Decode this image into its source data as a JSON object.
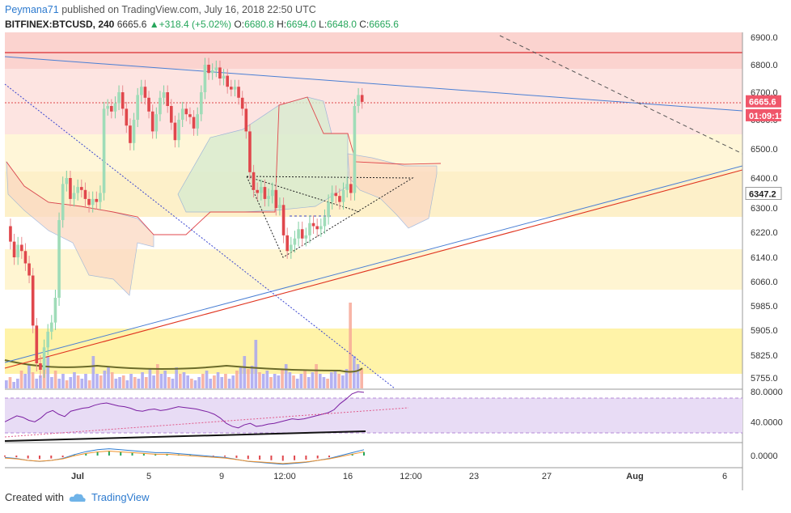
{
  "header": {
    "author": "Peymana71",
    "published": "published on TradingView.com, July 16, 2018 22:50 UTC"
  },
  "ohlc": {
    "symbol": "BITFINEX:BTCUSD, 240",
    "last": "6665.6",
    "change": "+318.4 (+5.02%)",
    "o_label": "O:",
    "o": "6680.8",
    "h_label": "H:",
    "h": "6694.0",
    "l_label": "L:",
    "l": "6648.0",
    "c_label": "C:",
    "c": "6665.6"
  },
  "footer": {
    "created": "Created with",
    "brand": "TradingView"
  },
  "colors": {
    "up": "#26a65b",
    "down": "#e0474c",
    "trend_blue": "#4a7fd4",
    "trend_red": "#e0341f",
    "price_label_bg": "#f0566a",
    "rsi_line": "#7b1fa2",
    "rsi_band": "#e8dcf5"
  },
  "chart_data": [
    {
      "type": "line",
      "title": "BITFINEX:BTCUSD, 240",
      "y_axis_labels": [
        "6900.0",
        "6800.0",
        "6700.0",
        "6600.0",
        "6500.0",
        "6400.0",
        "6300.0",
        "6220.0",
        "6140.0",
        "6060.0",
        "5985.0",
        "5905.0",
        "5825.0",
        "5755.0"
      ],
      "ylim": [
        5730,
        6930
      ],
      "x_axis_labels": [
        "Jul",
        "5",
        "9",
        "12:00",
        "16",
        "12:00",
        "23",
        "27",
        "Aug",
        "6"
      ],
      "price_tags": [
        {
          "label": "6665.6",
          "value": 6665.6,
          "kind": "last"
        },
        {
          "label": "01:09:11",
          "value": 6615,
          "kind": "countdown"
        },
        {
          "label": "6347.2",
          "value": 6347.2,
          "kind": "level"
        }
      ],
      "series": [
        {
          "values": [
            6240,
            6190,
            6140,
            6180,
            6160,
            6120,
            6080,
            5920,
            5800,
            5780,
            5850,
            5900,
            5930,
            6010,
            6260,
            6380,
            6400,
            6330,
            6350,
            6370,
            6360,
            6330,
            6310,
            6330,
            6320,
            6350,
            6640,
            6650,
            6630,
            6660,
            6700,
            6640,
            6580,
            6520,
            6600,
            6690,
            6720,
            6680,
            6630,
            6560,
            6620,
            6680,
            6700,
            6650,
            6590,
            6530,
            6600,
            6640,
            6620,
            6610,
            6570,
            6620,
            6700,
            6800,
            6770,
            6780,
            6790,
            6750,
            6760,
            6720,
            6710,
            6720,
            6680,
            6640,
            6560,
            6420,
            6360,
            6350,
            6370,
            6330,
            6340,
            6360,
            6300,
            6310,
            6210,
            6160,
            6180,
            6200,
            6230,
            6200,
            6210,
            6250,
            6240,
            6230,
            6240,
            6270,
            6320,
            6350,
            6340,
            6320,
            6360,
            6380,
            6350,
            6650,
            6690,
            6665
          ]
        }
      ]
    },
    {
      "type": "line",
      "title": "",
      "y_axis_labels": [
        "80.0000",
        "40.0000"
      ],
      "ylim": [
        20,
        80
      ],
      "series": [
        {
          "values": [
            40,
            44,
            48,
            46,
            42,
            40,
            45,
            52,
            55,
            50,
            47,
            54,
            56,
            58,
            59,
            62,
            64,
            65,
            63,
            61,
            60,
            58,
            55,
            54,
            56,
            57,
            55,
            56,
            58,
            60,
            59,
            58,
            57,
            55,
            53,
            50,
            45,
            38,
            34,
            32,
            36,
            38,
            34,
            35,
            37,
            38,
            40,
            42,
            44,
            43,
            44,
            46,
            48,
            50,
            52,
            56,
            64,
            70,
            77,
            80,
            79
          ]
        }
      ]
    },
    {
      "type": "line",
      "title": "",
      "y_axis_labels": [
        "0.0000"
      ],
      "ylim": [
        -1,
        1
      ],
      "series": [
        {
          "values": [
            -0.2,
            -0.3,
            -0.5,
            -0.6,
            -0.5,
            -0.3,
            0.1,
            0.4,
            0.6,
            0.7,
            0.6,
            0.5,
            0.4,
            0.3,
            0.3,
            0.2,
            0.1,
            0,
            -0.1,
            -0.2,
            -0.4,
            -0.6,
            -0.7,
            -0.8,
            -0.9,
            -0.8,
            -0.7,
            -0.5,
            -0.3,
            0,
            0.3,
            0.6
          ]
        }
      ]
    }
  ]
}
